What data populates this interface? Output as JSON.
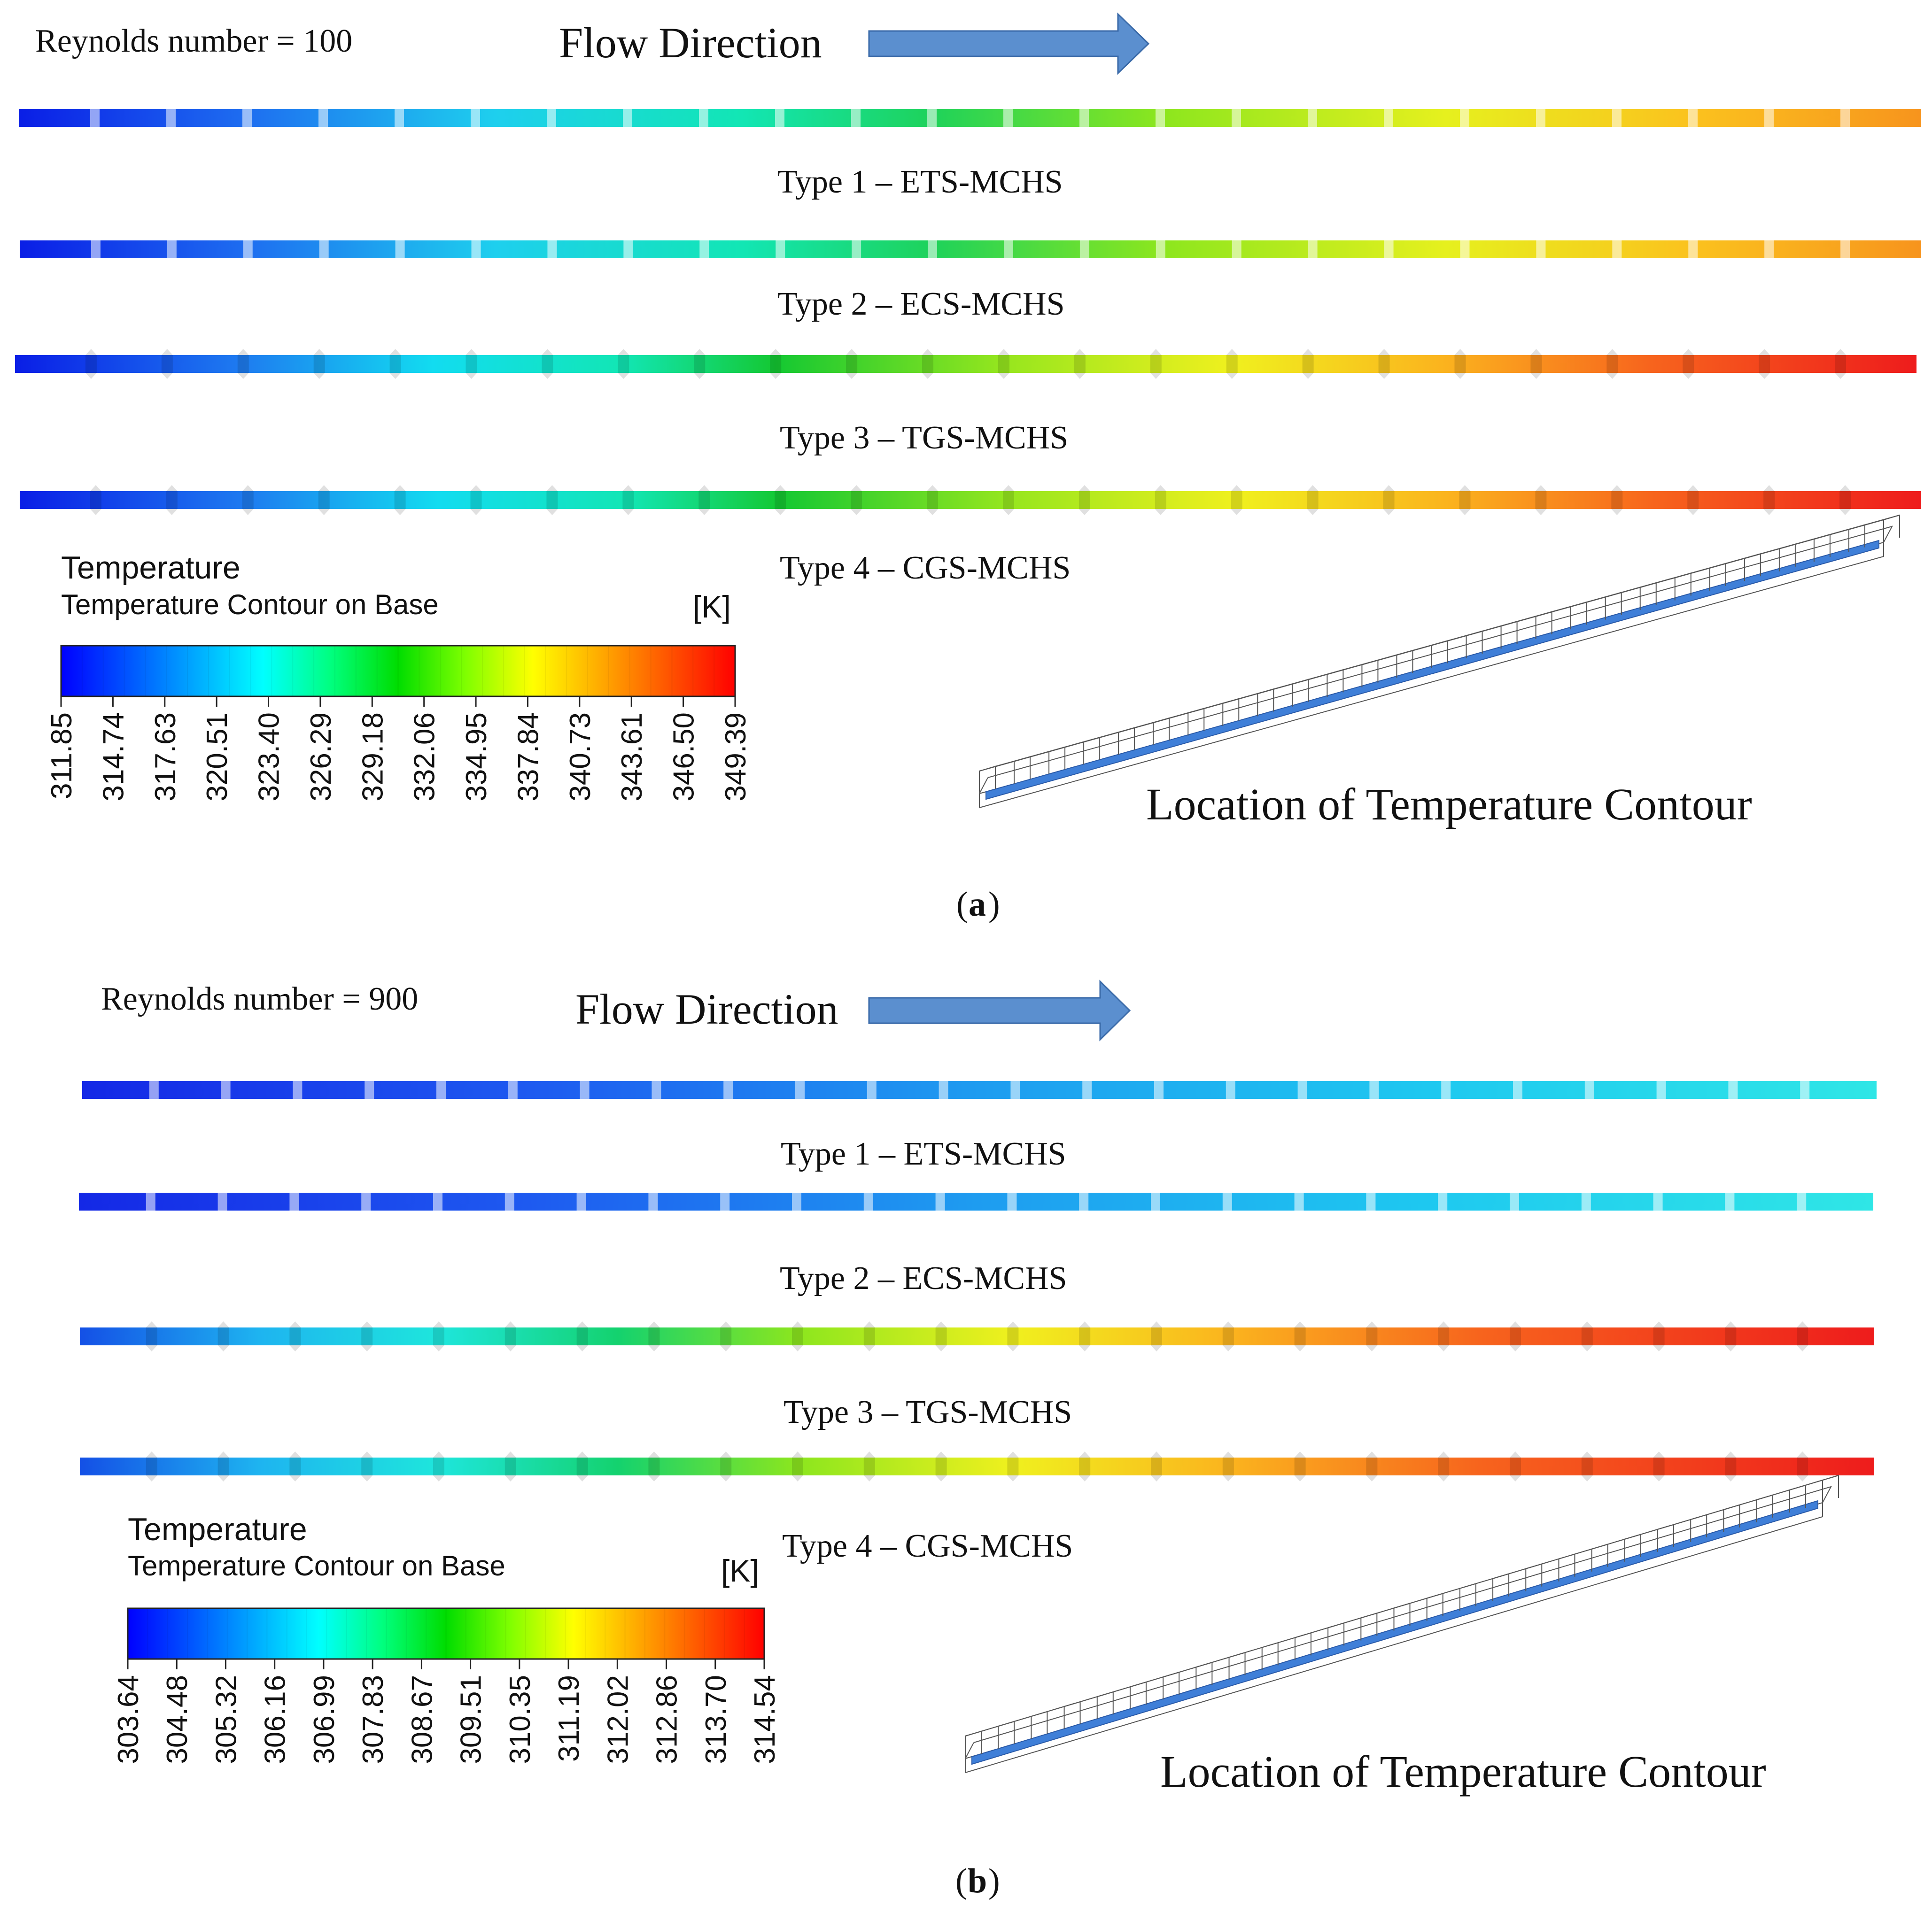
{
  "panels": [
    {
      "id": "a",
      "reynolds": "Reynolds number = 100",
      "flow_direction": "Flow Direction",
      "strips": [
        {
          "label": "Type 1 – ETS-MCHS",
          "style": "ets",
          "end_color": "#f7941d"
        },
        {
          "label": "Type 2 – ECS-MCHS",
          "style": "ecs",
          "end_color": "#f7941d"
        },
        {
          "label": "Type 3 – TGS-MCHS",
          "style": "tgs",
          "end_color": "#ee1c1c"
        },
        {
          "label": "Type 4 – CGS-MCHS",
          "style": "cgs",
          "end_color": "#ee1c1c"
        }
      ],
      "legend": {
        "title": "Temperature",
        "subtitle": "Temperature Contour on Base",
        "unit": "[K]",
        "ticks": [
          "311.85",
          "314.74",
          "317.63",
          "320.51",
          "323.40",
          "326.29",
          "329.18",
          "332.06",
          "334.95",
          "337.84",
          "340.73",
          "343.61",
          "346.50",
          "349.39"
        ]
      },
      "location_label": "Location of Temperature Contour",
      "caption_letter": "a"
    },
    {
      "id": "b",
      "reynolds": "Reynolds number = 900",
      "flow_direction": "Flow Direction",
      "strips": [
        {
          "label": "Type 1 – ETS-MCHS",
          "style": "ets",
          "end_color": "#2fe6e6"
        },
        {
          "label": "Type 2 – ECS-MCHS",
          "style": "ecs",
          "end_color": "#2fe6e6"
        },
        {
          "label": "Type 3 – TGS-MCHS",
          "style": "tgs",
          "end_color": "#ee1c1c"
        },
        {
          "label": "Type 4 – CGS-MCHS",
          "style": "cgs",
          "end_color": "#ee1c1c"
        }
      ],
      "legend": {
        "title": "Temperature",
        "subtitle": "Temperature Contour on Base",
        "unit": "[K]",
        "ticks": [
          "303.64",
          "304.48",
          "305.32",
          "306.16",
          "306.99",
          "307.83",
          "308.67",
          "309.51",
          "310.35",
          "311.19",
          "312.02",
          "312.86",
          "313.70",
          "314.54"
        ]
      },
      "location_label": "Location of Temperature Contour",
      "caption_letter": "b"
    }
  ],
  "colors": {
    "colormap": [
      "#0000ff",
      "#0055ff",
      "#00aaff",
      "#00ffff",
      "#00ff7f",
      "#00dd00",
      "#7fff00",
      "#ffff00",
      "#ffaa00",
      "#ff5500",
      "#ff0000"
    ],
    "arrow": "#5b8fcf",
    "channel": "#3f7fd8",
    "frame": "#555555"
  }
}
